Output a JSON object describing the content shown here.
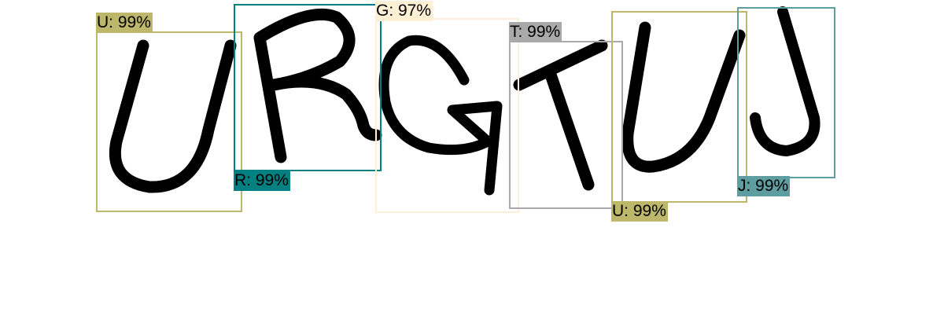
{
  "detections": [
    {
      "char": "U",
      "label": "U: 99%",
      "color": "#bdb76b"
    },
    {
      "char": "R",
      "label": "R: 99%",
      "color": "#008080"
    },
    {
      "char": "G",
      "label": "G: 97%",
      "color": "#fdf0d5"
    },
    {
      "char": "T",
      "label": "T: 99%",
      "color": "#a9a9a9"
    },
    {
      "char": "U",
      "label": "U: 99%",
      "color": "#bdb76b"
    },
    {
      "char": "J",
      "label": "J: 99%",
      "color": "#5f9ea0"
    }
  ]
}
